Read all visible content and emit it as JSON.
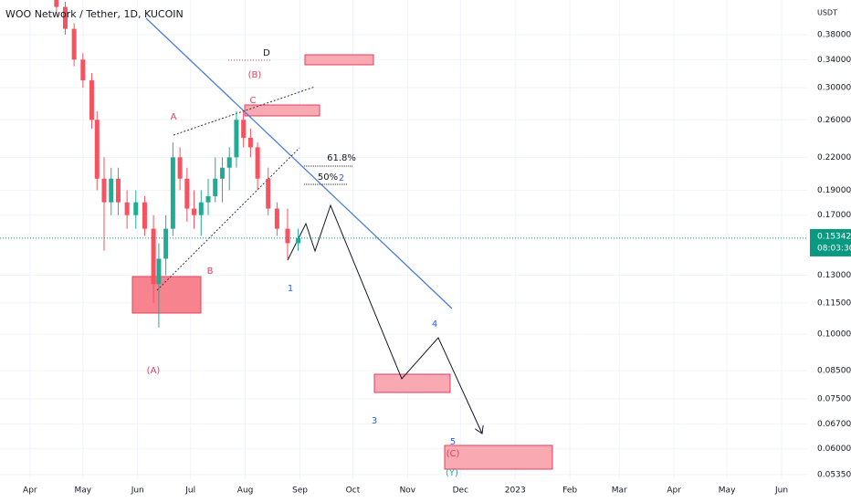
{
  "chart_data": {
    "type": "candlestick",
    "title": "WOO Network / Tether, 1D, KUCOIN",
    "y_unit": "USDT",
    "log_scale": true,
    "up_color": "#22ab94",
    "down_color": "#f7525f",
    "x": [
      15,
      20,
      25,
      30,
      35,
      38,
      42,
      46,
      50,
      55,
      60,
      65,
      70,
      73,
      77,
      81,
      85,
      89,
      93,
      97,
      101,
      105,
      109,
      113,
      117,
      121,
      125,
      129,
      135,
      140,
      146,
      152
    ],
    "open": [
      0.46,
      0.43,
      0.39,
      0.34,
      0.31,
      0.26,
      0.2,
      0.18,
      0.2,
      0.18,
      0.17,
      0.18,
      0.16,
      0.125,
      0.14,
      0.16,
      0.22,
      0.2,
      0.175,
      0.17,
      0.18,
      0.185,
      0.2,
      0.21,
      0.22,
      0.26,
      0.24,
      0.23,
      0.2,
      0.175,
      0.16,
      0.15
    ],
    "high": [
      0.47,
      0.44,
      0.4,
      0.35,
      0.32,
      0.27,
      0.22,
      0.21,
      0.21,
      0.19,
      0.19,
      0.185,
      0.17,
      0.15,
      0.17,
      0.235,
      0.23,
      0.21,
      0.19,
      0.19,
      0.2,
      0.22,
      0.22,
      0.23,
      0.27,
      0.27,
      0.25,
      0.235,
      0.21,
      0.18,
      0.175,
      0.16
    ],
    "low": [
      0.42,
      0.38,
      0.33,
      0.3,
      0.25,
      0.19,
      0.145,
      0.17,
      0.17,
      0.16,
      0.16,
      0.155,
      0.115,
      0.103,
      0.13,
      0.155,
      0.19,
      0.165,
      0.16,
      0.155,
      0.17,
      0.18,
      0.18,
      0.19,
      0.21,
      0.23,
      0.22,
      0.19,
      0.17,
      0.155,
      0.14,
      0.145
    ],
    "close": [
      0.43,
      0.39,
      0.34,
      0.31,
      0.26,
      0.2,
      0.18,
      0.2,
      0.18,
      0.17,
      0.18,
      0.16,
      0.125,
      0.14,
      0.16,
      0.22,
      0.2,
      0.175,
      0.17,
      0.18,
      0.185,
      0.2,
      0.21,
      0.22,
      0.26,
      0.24,
      0.23,
      0.2,
      0.175,
      0.16,
      0.15,
      0.15342
    ],
    "last_price": 0.15342,
    "last_price_color": "#089981",
    "countdown": "08:03:30",
    "xlim": [
      -17,
      441
    ],
    "xticks": [
      {
        "value": 0,
        "label": "Apr"
      },
      {
        "value": 30,
        "label": "May"
      },
      {
        "value": 61,
        "label": "Jun"
      },
      {
        "value": 91,
        "label": "Jul"
      },
      {
        "value": 122,
        "label": "Aug"
      },
      {
        "value": 153,
        "label": "Sep"
      },
      {
        "value": 183,
        "label": "Oct"
      },
      {
        "value": 214,
        "label": "Nov"
      },
      {
        "value": 244,
        "label": "Dec"
      },
      {
        "value": 275,
        "label": "2023"
      },
      {
        "value": 306,
        "label": "Feb"
      },
      {
        "value": 334,
        "label": "Mar"
      },
      {
        "value": 365,
        "label": "Apr"
      },
      {
        "value": 395,
        "label": "May"
      },
      {
        "value": 426,
        "label": "Jun"
      }
    ],
    "ylim": [
      0.0524,
      0.4435
    ],
    "yticks": [
      {
        "value": 0.38,
        "label": "0.38000"
      },
      {
        "value": 0.34,
        "label": "0.34000"
      },
      {
        "value": 0.3,
        "label": "0.30000"
      },
      {
        "value": 0.26,
        "label": "0.26000"
      },
      {
        "value": 0.22,
        "label": "0.22000"
      },
      {
        "value": 0.19,
        "label": "0.19000"
      },
      {
        "value": 0.17,
        "label": "0.17000"
      },
      {
        "value": 0.13,
        "label": "0.13000"
      },
      {
        "value": 0.115,
        "label": "0.11500"
      },
      {
        "value": 0.1,
        "label": "0.10000"
      },
      {
        "value": 0.085,
        "label": "0.08500"
      },
      {
        "value": 0.075,
        "label": "0.07500"
      },
      {
        "value": 0.067,
        "label": "0.06700"
      },
      {
        "value": 0.06,
        "label": "0.06000"
      },
      {
        "value": 0.0535,
        "label": "0.05350"
      }
    ],
    "grid": true,
    "annotations": [
      {
        "text": "A",
        "color": "#e0405e"
      },
      {
        "text": "B",
        "color": "#e0405e"
      },
      {
        "text": "C",
        "color": "#e0405e"
      },
      {
        "text": "D",
        "color": "#131722"
      },
      {
        "text": "(A)",
        "color": "#e0405e"
      },
      {
        "text": "(B)",
        "color": "#e0405e"
      },
      {
        "text": "(C)",
        "color": "#e0405e"
      },
      {
        "text": "(Y)",
        "color": "#22ab94"
      },
      {
        "text": "1",
        "color": "#2962ff"
      },
      {
        "text": "2",
        "color": "#2962ff"
      },
      {
        "text": "3",
        "color": "#2962ff"
      },
      {
        "text": "4",
        "color": "#2962ff"
      },
      {
        "text": "5",
        "color": "#2962ff"
      },
      {
        "text": "61.8%",
        "color": "#131722"
      },
      {
        "text": "50%",
        "color": "#131722"
      }
    ]
  }
}
